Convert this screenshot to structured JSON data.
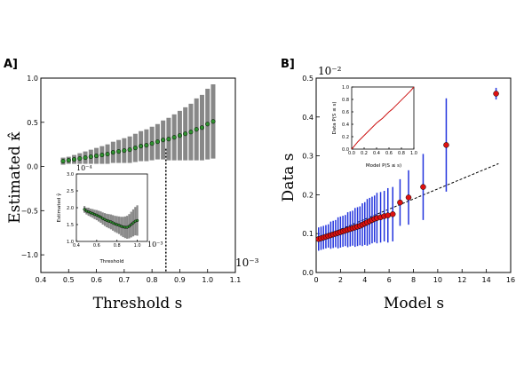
{
  "panel_labels": [
    "A]",
    "B]"
  ],
  "chart_data": [
    {
      "panel": "A]",
      "type": "scatter",
      "xlabel": "Threshold s",
      "ylabel": "Estimated κ̂",
      "x_exponent": "10⁻³",
      "xlim": [
        0.4,
        1.1
      ],
      "ylim": [
        -1.2,
        1.0
      ],
      "xticks": [
        "0.4",
        "0.5",
        "0.6",
        "0.7",
        "0.8",
        "0.9",
        "1.0",
        "1.1"
      ],
      "yticks": [
        "−1.0",
        "−0.5",
        "0.0",
        "0.5",
        "1.0"
      ],
      "vline_x": 0.85,
      "series": [
        {
          "marker": "circle",
          "color": "#2f8f2f",
          "errorbar_color": "#888888",
          "x": [
            0.48,
            0.5,
            0.52,
            0.54,
            0.56,
            0.58,
            0.6,
            0.62,
            0.64,
            0.66,
            0.68,
            0.7,
            0.72,
            0.74,
            0.76,
            0.78,
            0.8,
            0.82,
            0.84,
            0.86,
            0.88,
            0.9,
            0.92,
            0.94,
            0.96,
            0.98,
            1.0,
            1.02
          ],
          "y": [
            0.06,
            0.07,
            0.08,
            0.09,
            0.1,
            0.11,
            0.12,
            0.13,
            0.14,
            0.16,
            0.17,
            0.18,
            0.19,
            0.21,
            0.23,
            0.24,
            0.26,
            0.28,
            0.3,
            0.31,
            0.33,
            0.35,
            0.37,
            0.39,
            0.42,
            0.44,
            0.48,
            0.51
          ],
          "err": [
            0.04,
            0.04,
            0.05,
            0.06,
            0.07,
            0.08,
            0.09,
            0.1,
            0.11,
            0.12,
            0.13,
            0.14,
            0.15,
            0.16,
            0.17,
            0.18,
            0.19,
            0.2,
            0.22,
            0.24,
            0.26,
            0.28,
            0.3,
            0.32,
            0.35,
            0.37,
            0.4,
            0.42
          ]
        }
      ],
      "inset": {
        "xlabel": "Threshold",
        "ylabel": "Estimated γ̂",
        "y_exponent": "10⁻⁴",
        "x_exponent": "10⁻³",
        "xlim": [
          0.4,
          1.1
        ],
        "ylim": [
          1.0,
          3.0
        ],
        "xticks": [
          "0.4",
          "0.6",
          "0.8",
          "1.0"
        ],
        "yticks": [
          "1.0",
          "1.5",
          "2.0",
          "2.5",
          "3.0"
        ],
        "x": [
          0.48,
          0.5,
          0.52,
          0.54,
          0.56,
          0.58,
          0.6,
          0.62,
          0.64,
          0.66,
          0.68,
          0.7,
          0.72,
          0.74,
          0.76,
          0.78,
          0.8,
          0.82,
          0.84,
          0.86,
          0.88,
          0.9,
          0.92,
          0.94,
          0.96,
          0.98,
          1.0
        ],
        "y": [
          1.95,
          1.9,
          1.88,
          1.85,
          1.83,
          1.8,
          1.78,
          1.75,
          1.72,
          1.68,
          1.65,
          1.62,
          1.6,
          1.58,
          1.55,
          1.52,
          1.5,
          1.48,
          1.45,
          1.43,
          1.42,
          1.42,
          1.45,
          1.5,
          1.55,
          1.6,
          1.62
        ],
        "err": [
          0.1,
          0.1,
          0.12,
          0.12,
          0.13,
          0.14,
          0.15,
          0.16,
          0.17,
          0.18,
          0.19,
          0.2,
          0.21,
          0.22,
          0.23,
          0.24,
          0.25,
          0.26,
          0.28,
          0.3,
          0.32,
          0.34,
          0.36,
          0.38,
          0.4,
          0.42,
          0.45
        ]
      }
    },
    {
      "panel": "B]",
      "type": "scatter",
      "xlabel": "Model s",
      "ylabel": "Data s",
      "y_exponent": "10⁻²",
      "xlim": [
        0,
        16
      ],
      "ylim": [
        0.0,
        0.5
      ],
      "xticks": [
        "0",
        "2",
        "4",
        "6",
        "8",
        "10",
        "12",
        "14",
        "16"
      ],
      "yticks": [
        "0.0",
        "0.1",
        "0.2",
        "0.3",
        "0.4",
        "0.5"
      ],
      "reference_line": {
        "x": [
          0,
          15
        ],
        "y": [
          0.085,
          0.28
        ]
      },
      "series": [
        {
          "marker": "circle",
          "color": "#dd1111",
          "errorbar_color": "#2233dd",
          "x": [
            0.2,
            0.4,
            0.6,
            0.8,
            1.0,
            1.2,
            1.4,
            1.6,
            1.8,
            2.0,
            2.2,
            2.4,
            2.6,
            2.8,
            3.0,
            3.2,
            3.4,
            3.6,
            3.8,
            4.0,
            4.2,
            4.4,
            4.6,
            4.8,
            5.0,
            5.3,
            5.6,
            5.9,
            6.3,
            6.9,
            7.6,
            8.8,
            10.7,
            14.8
          ],
          "y": [
            0.086,
            0.088,
            0.09,
            0.092,
            0.094,
            0.096,
            0.098,
            0.1,
            0.102,
            0.104,
            0.106,
            0.108,
            0.11,
            0.112,
            0.114,
            0.116,
            0.118,
            0.12,
            0.123,
            0.126,
            0.129,
            0.132,
            0.135,
            0.138,
            0.14,
            0.142,
            0.145,
            0.147,
            0.15,
            0.18,
            0.193,
            0.22,
            0.328,
            0.46
          ],
          "err": [
            0.03,
            0.03,
            0.03,
            0.03,
            0.03,
            0.035,
            0.035,
            0.035,
            0.04,
            0.04,
            0.04,
            0.04,
            0.045,
            0.045,
            0.045,
            0.05,
            0.05,
            0.05,
            0.055,
            0.055,
            0.06,
            0.06,
            0.06,
            0.06,
            0.065,
            0.065,
            0.065,
            0.07,
            0.07,
            0.06,
            0.07,
            0.085,
            0.12,
            0.015
          ]
        }
      ],
      "inset": {
        "xlabel": "Model   P(S ≤ s)",
        "ylabel": "Data   P(S ≤ s)",
        "xlim": [
          0.0,
          1.0
        ],
        "ylim": [
          0.0,
          1.0
        ],
        "xticks": [
          "0.0",
          "0.2",
          "0.4",
          "0.6",
          "0.8",
          "1.0"
        ],
        "yticks": [
          "0.0",
          "0.2",
          "0.4",
          "0.6",
          "0.8",
          "1.0"
        ],
        "x": [
          0.0,
          0.05,
          0.1,
          0.15,
          0.2,
          0.25,
          0.3,
          0.35,
          0.4,
          0.45,
          0.5,
          0.55,
          0.6,
          0.65,
          0.7,
          0.75,
          0.8,
          0.85,
          0.9,
          0.95,
          1.0
        ],
        "y": [
          0.0,
          0.06,
          0.12,
          0.17,
          0.22,
          0.27,
          0.32,
          0.37,
          0.42,
          0.46,
          0.5,
          0.55,
          0.6,
          0.64,
          0.69,
          0.74,
          0.79,
          0.84,
          0.89,
          0.94,
          1.0
        ]
      }
    }
  ]
}
